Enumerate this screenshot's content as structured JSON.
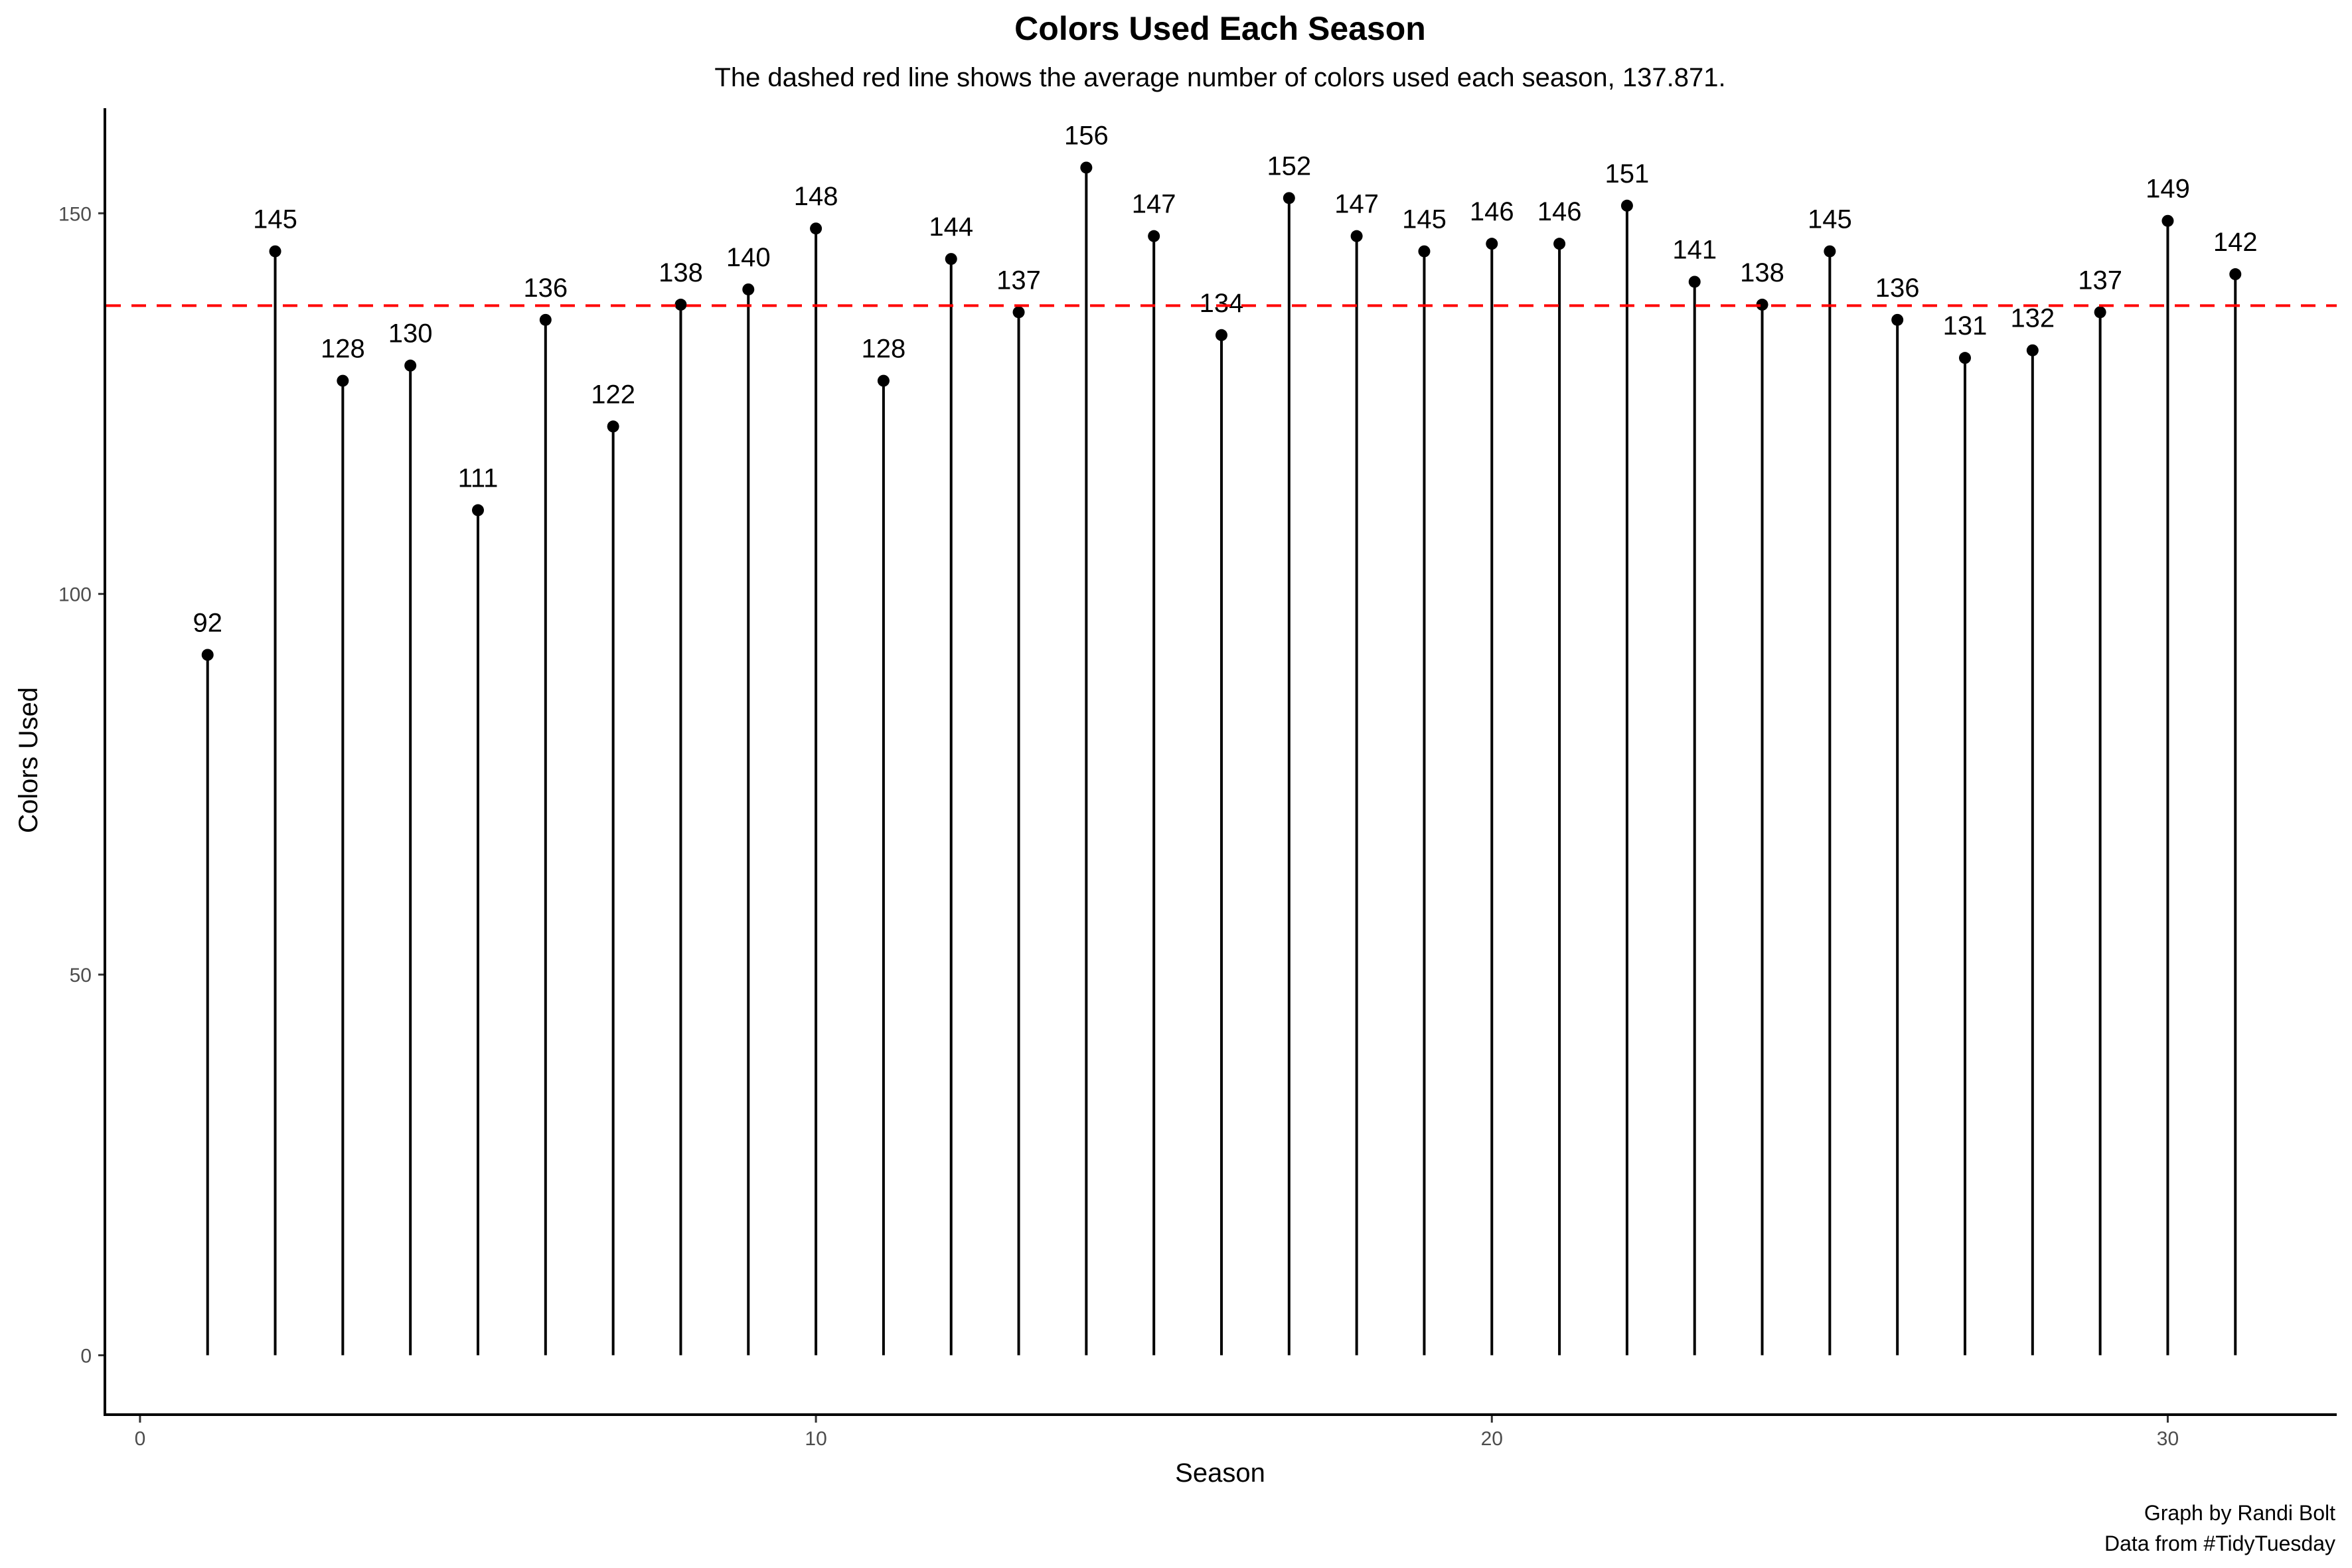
{
  "chart_data": {
    "type": "lollipop",
    "title": "Colors Used Each Season",
    "subtitle": "The dashed red line shows the average number of colors used each season, 137.871.",
    "xlabel": "Season",
    "ylabel": "Colors Used",
    "x": [
      1,
      2,
      3,
      4,
      5,
      6,
      7,
      8,
      9,
      10,
      11,
      12,
      13,
      14,
      15,
      16,
      17,
      18,
      19,
      20,
      21,
      22,
      23,
      24,
      25,
      26,
      27,
      28,
      29,
      30,
      31
    ],
    "values": [
      92,
      145,
      128,
      130,
      111,
      136,
      122,
      138,
      140,
      148,
      128,
      144,
      137,
      156,
      147,
      134,
      152,
      147,
      145,
      146,
      146,
      151,
      141,
      138,
      145,
      136,
      131,
      132,
      137,
      149,
      142
    ],
    "average": 137.871,
    "xlim": [
      -0.5,
      32.5
    ],
    "ylim": [
      -7.8,
      163.8
    ],
    "xticks": [
      0,
      10,
      20,
      30
    ],
    "yticks": [
      0,
      50,
      100,
      150
    ],
    "grid": false,
    "colors": {
      "stem": "#000000",
      "point": "#000000",
      "average_line": "#ff0000"
    },
    "caption": [
      "Graph by Randi Bolt",
      "Data from #TidyTuesday"
    ]
  }
}
